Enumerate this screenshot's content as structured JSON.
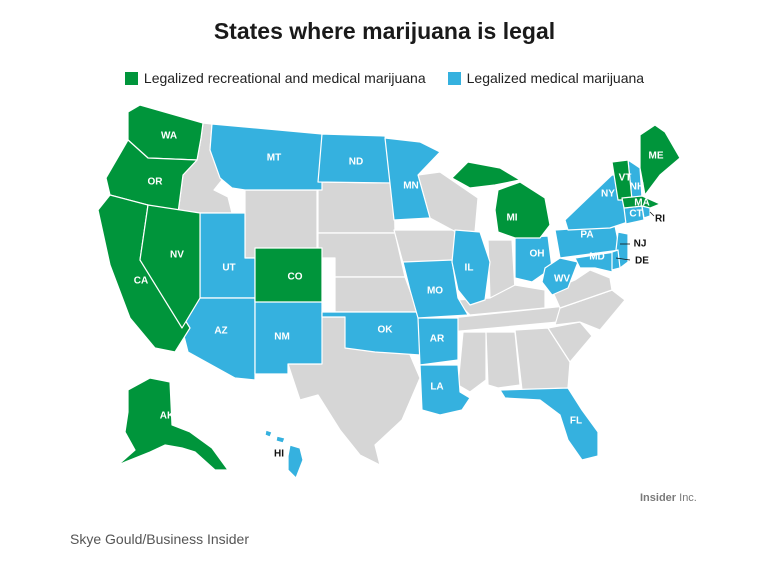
{
  "title": "States where marijuana is legal",
  "legend": {
    "recreational": {
      "label": "Legalized recreational and medical marijuana",
      "color": "#00953b"
    },
    "medical": {
      "label": "Legalized medical marijuana",
      "color": "#35b1df"
    },
    "none_color": "#d6d6d6"
  },
  "states": {
    "WA": "WA",
    "OR": "OR",
    "CA": "CA",
    "NV": "NV",
    "CO": "CO",
    "AK": "AK",
    "MI": "MI",
    "VT": "VT",
    "ME": "ME",
    "MA": "MA",
    "MT": "MT",
    "ND": "ND",
    "MN": "MN",
    "UT": "UT",
    "AZ": "AZ",
    "NM": "NM",
    "OK": "OK",
    "AR": "AR",
    "LA": "LA",
    "MO": "MO",
    "IL": "IL",
    "OH": "OH",
    "WV": "WV",
    "PA": "PA",
    "NY": "NY",
    "NH": "NH",
    "CT": "CT",
    "MD": "MD",
    "FL": "FL",
    "RI": "RI",
    "NJ": "NJ",
    "DE": "DE",
    "HI": "HI"
  },
  "brand": {
    "bold": "Insider",
    "rest": " Inc."
  },
  "credit": "Skye Gould/Business Insider"
}
